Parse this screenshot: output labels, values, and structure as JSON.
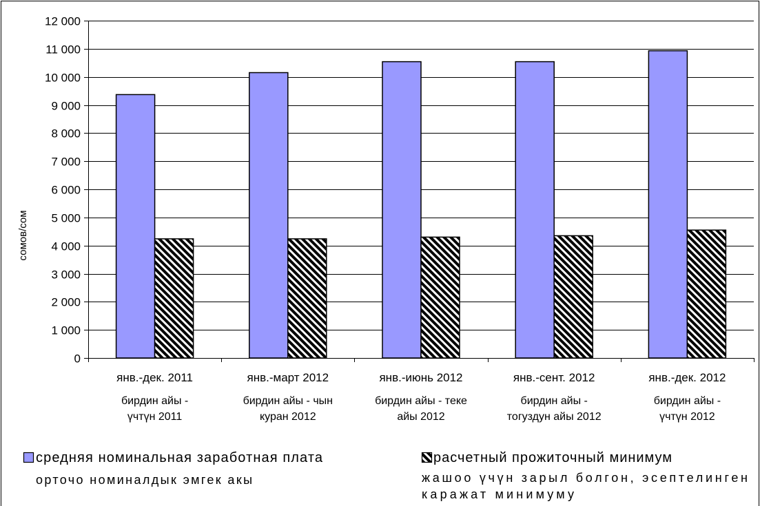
{
  "chart_data": {
    "type": "bar",
    "categories": [
      "янв.-дек. 2011",
      "янв.-март 2012",
      "янв.-июнь 2012",
      "янв.-сент. 2012",
      "янв.-дек. 2012"
    ],
    "categories_ky": [
      [
        "бирдин айы -",
        "үчтүн 2011"
      ],
      [
        "бирдин айы - чын",
        "куран 2012"
      ],
      [
        "бирдин айы - теке",
        "айы 2012"
      ],
      [
        "бирдин айы -",
        "тогуздун айы 2012"
      ],
      [
        "бирдин айы -",
        "үчтүн 2012"
      ]
    ],
    "series": [
      {
        "name": "средняя номинальная заработная плата",
        "name_ky": [
          "орточо номиналдык эмгек акы"
        ],
        "values": [
          9370,
          10150,
          10540,
          10540,
          10930
        ],
        "color": "#9999ff"
      },
      {
        "name": "расчетный прожиточный минимум",
        "name_ky": [
          "жашоо үчүн зарыл болгон, эсептелинген",
          "каражат минимуму"
        ],
        "values": [
          4240,
          4240,
          4300,
          4350,
          4550
        ],
        "color": "#000000"
      }
    ],
    "ylabel": "сомов/сом",
    "ylim": [
      0,
      12000
    ],
    "yticks": [
      0,
      1000,
      2000,
      3000,
      4000,
      5000,
      6000,
      7000,
      8000,
      9000,
      10000,
      11000,
      12000
    ],
    "ytick_labels": [
      "0",
      "1 000",
      "2 000",
      "3 000",
      "4 000",
      "5 000",
      "6 000",
      "7 000",
      "8 000",
      "9 000",
      "10 000",
      "11 000",
      "12 000"
    ],
    "grid": true,
    "legend": "bottom"
  }
}
